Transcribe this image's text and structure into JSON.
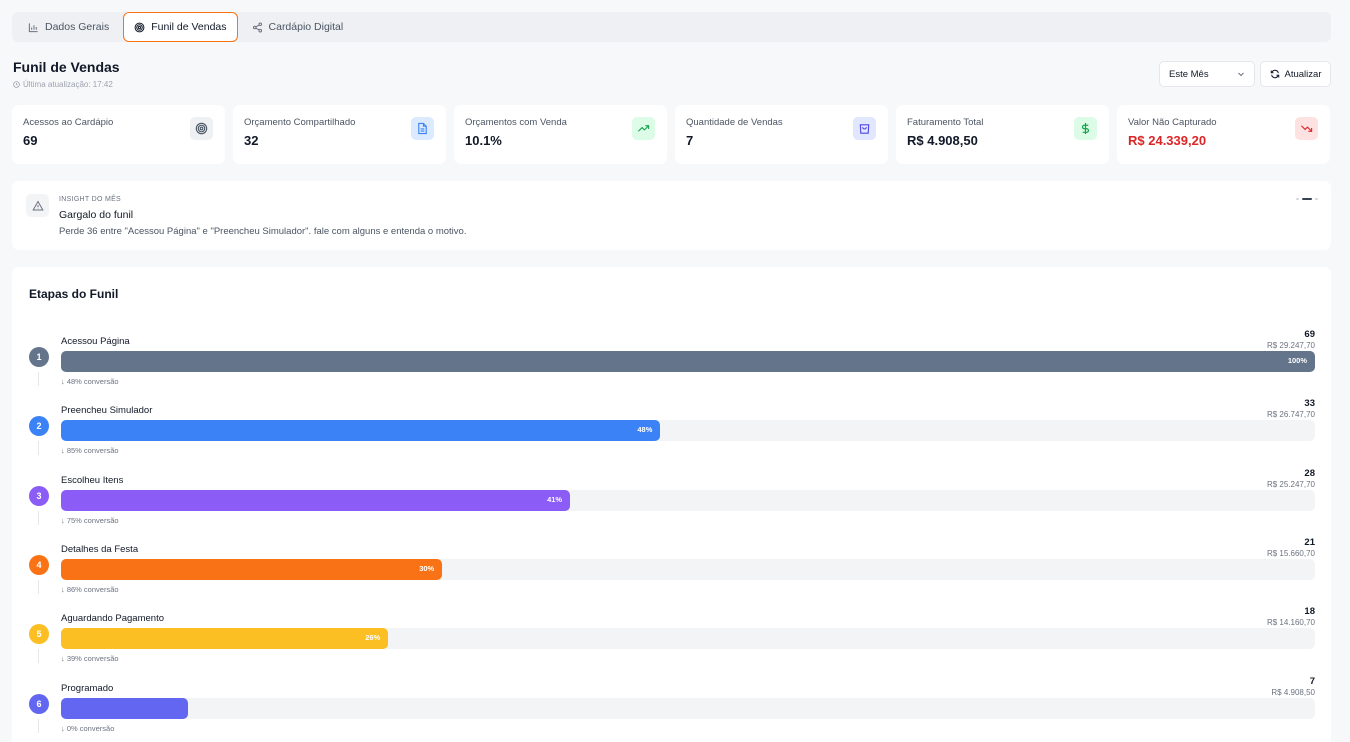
{
  "tabs": [
    {
      "label": "Dados Gerais",
      "icon": "bar-chart-icon"
    },
    {
      "label": "Funil de Vendas",
      "icon": "target-icon"
    },
    {
      "label": "Cardápio Digital",
      "icon": "share-icon"
    }
  ],
  "header": {
    "title": "Funil de Vendas",
    "updated": "Última atualização: 17:42",
    "period": "Este Mês",
    "refresh": "Atualizar"
  },
  "kpis": [
    {
      "label": "Acessos ao Cardápio",
      "value": "69",
      "icon": "target-icon",
      "color": "#4b5563",
      "bg": "#eef0f3"
    },
    {
      "label": "Orçamento Compartilhado",
      "value": "32",
      "icon": "document-icon",
      "color": "#3b82f6",
      "bg": "#dbeafe"
    },
    {
      "label": "Orçamentos com Venda",
      "value": "10.1%",
      "icon": "trending-up-icon",
      "color": "#16a34a",
      "bg": "#dcfce7"
    },
    {
      "label": "Quantidade de Vendas",
      "value": "7",
      "icon": "shopping-bag-icon",
      "color": "#4f46e5",
      "bg": "#e0e7ff"
    },
    {
      "label": "Faturamento Total",
      "value": "R$ 4.908,50",
      "icon": "dollar-icon",
      "color": "#16a34a",
      "bg": "#dcfce7"
    },
    {
      "label": "Valor Não Capturado",
      "value": "R$ 24.339,20",
      "icon": "trending-down-icon",
      "color": "#dc2626",
      "bg": "#fee2e2"
    }
  ],
  "insight": {
    "kicker": "INSIGHT DO MÊS",
    "title": "Gargalo do funil",
    "text": "Perde 36 entre \"Acessou Página\" e \"Preencheu Simulador\". fale com alguns e entenda o motivo."
  },
  "funnel": {
    "title": "Etapas do Funil",
    "stages": [
      {
        "num": "1",
        "name": "Acessou Página",
        "count": "69",
        "money": "R$ 29.247,70",
        "pct": 100,
        "pct_label": "100%",
        "conversion": "↓ 48% conversão",
        "color": "#64748b"
      },
      {
        "num": "2",
        "name": "Preencheu Simulador",
        "count": "33",
        "money": "R$ 26.747,70",
        "pct": 47.8,
        "pct_label": "48%",
        "conversion": "↓ 85% conversão",
        "color": "#3b82f6"
      },
      {
        "num": "3",
        "name": "Escolheu Itens",
        "count": "28",
        "money": "R$ 25.247,70",
        "pct": 40.6,
        "pct_label": "41%",
        "conversion": "↓ 75% conversão",
        "color": "#8b5cf6"
      },
      {
        "num": "4",
        "name": "Detalhes da Festa",
        "count": "21",
        "money": "R$ 15.660,70",
        "pct": 30.4,
        "pct_label": "30%",
        "conversion": "↓ 86% conversão",
        "color": "#f97316"
      },
      {
        "num": "5",
        "name": "Aguardando Pagamento",
        "count": "18",
        "money": "R$ 14.160,70",
        "pct": 26.1,
        "pct_label": "26%",
        "conversion": "↓ 39% conversão",
        "color": "#fbbf24"
      },
      {
        "num": "6",
        "name": "Programado",
        "count": "7",
        "money": "R$ 4.908,50",
        "pct": 10.1,
        "pct_label": "",
        "conversion": "↓ 0% conversão",
        "color": "#6366f1"
      }
    ]
  }
}
